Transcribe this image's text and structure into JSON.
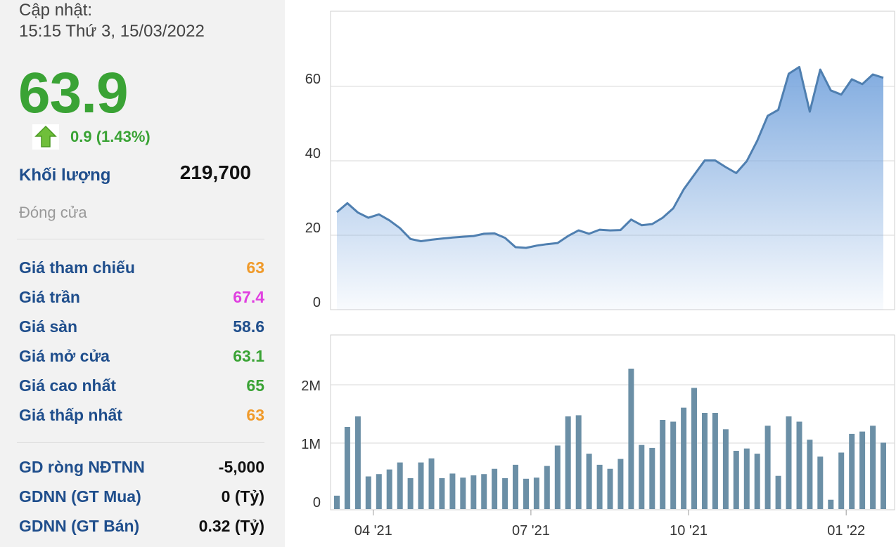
{
  "header": {
    "updated_label": "Cập nhật:",
    "updated_time": "15:15 Thứ 3, 15/03/2022",
    "price": "63.9",
    "change": "0.9 (1.43%)",
    "volume_label": "Khối lượng",
    "volume_value": "219,700",
    "status": "Đóng cửa"
  },
  "colors": {
    "up": "#3aa335",
    "ceiling": "#e040e0",
    "floor": "#1f4e8c",
    "reference": "#f09a2a",
    "line": "#4f7fb0",
    "bar": "#6b8fa6"
  },
  "stats": [
    {
      "label": "Giá tham chiếu",
      "value": "63",
      "color": "#f09a2a"
    },
    {
      "label": "Giá trần",
      "value": "67.4",
      "color": "#e040e0"
    },
    {
      "label": "Giá sàn",
      "value": "58.6",
      "color": "#1f4e8c"
    },
    {
      "label": "Giá mở cửa",
      "value": "63.1",
      "color": "#3aa335"
    },
    {
      "label": "Giá cao nhất",
      "value": "65",
      "color": "#3aa335"
    },
    {
      "label": "Giá thấp nhất",
      "value": "63",
      "color": "#f09a2a"
    }
  ],
  "foreign": [
    {
      "label": "GD ròng NĐTNN",
      "value": "-5,000"
    },
    {
      "label": "GDNN (GT Mua)",
      "value": "0 (Tỷ)"
    },
    {
      "label": "GDNN (GT Bán)",
      "value": "0.32 (Tỷ)"
    }
  ],
  "chart_data": [
    {
      "type": "area",
      "x_ticks": [
        "04 '21",
        "07 '21",
        "10 '21",
        "01 '22"
      ],
      "yticks": [
        "0",
        "20",
        "40",
        "60"
      ],
      "ylim": [
        0,
        80
      ],
      "grid": true,
      "values": [
        26.2,
        28.6,
        26.1,
        24.7,
        25.6,
        24.0,
        21.9,
        19.0,
        18.4,
        18.8,
        19.1,
        19.4,
        19.6,
        19.8,
        20.4,
        20.5,
        19.3,
        16.8,
        16.6,
        17.2,
        17.6,
        17.9,
        19.8,
        21.3,
        20.4,
        21.5,
        21.3,
        21.4,
        24.2,
        22.7,
        23.0,
        24.7,
        27.2,
        32.3,
        36.2,
        40.1,
        40.1,
        38.3,
        36.7,
        39.9,
        45.4,
        52.1,
        53.7,
        63.4,
        65.2,
        53.2,
        64.5,
        58.9,
        57.8,
        61.9,
        60.6,
        63.2,
        62.3
      ]
    },
    {
      "type": "bar",
      "x_ticks": [
        "04 '21",
        "07 '21",
        "10 '21",
        "01 '22"
      ],
      "yticks": [
        "0",
        "1M",
        "2M"
      ],
      "ylim": [
        0,
        2800000
      ],
      "grid": true,
      "values": [
        230000,
        1410000,
        1590000,
        560000,
        600000,
        680000,
        800000,
        530000,
        800000,
        870000,
        530000,
        610000,
        540000,
        580000,
        600000,
        690000,
        530000,
        760000,
        520000,
        540000,
        740000,
        1090000,
        1590000,
        1610000,
        950000,
        760000,
        690000,
        860000,
        2410000,
        1100000,
        1050000,
        1530000,
        1500000,
        1740000,
        2080000,
        1650000,
        1650000,
        1370000,
        1000000,
        1040000,
        950000,
        1430000,
        570000,
        1590000,
        1500000,
        1190000,
        900000,
        160000,
        970000,
        1290000,
        1330000,
        1430000,
        1140000
      ]
    }
  ]
}
